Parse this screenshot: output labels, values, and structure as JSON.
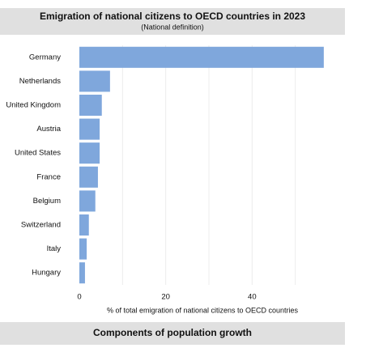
{
  "chart_data": {
    "type": "bar",
    "orientation": "horizontal",
    "title": "Emigration of national citizens to OECD countries in 2023",
    "subtitle": "(National definition)",
    "x_label": "% of total emigration of national citizens to OECD countries",
    "categories": [
      "Germany",
      "Netherlands",
      "United Kingdom",
      "Austria",
      "United States",
      "France",
      "Belgium",
      "Switzerland",
      "Italy",
      "Hungary"
    ],
    "values": [
      56.6,
      7.1,
      5.2,
      4.7,
      4.7,
      4.3,
      3.7,
      2.2,
      1.7,
      1.3
    ],
    "color": "#7fa7dc",
    "xlim": [
      0,
      57
    ],
    "xticks": [
      0,
      20,
      40
    ],
    "grid_lines": [
      10,
      20,
      30,
      40,
      50
    ]
  },
  "section_title": "Components of population growth"
}
